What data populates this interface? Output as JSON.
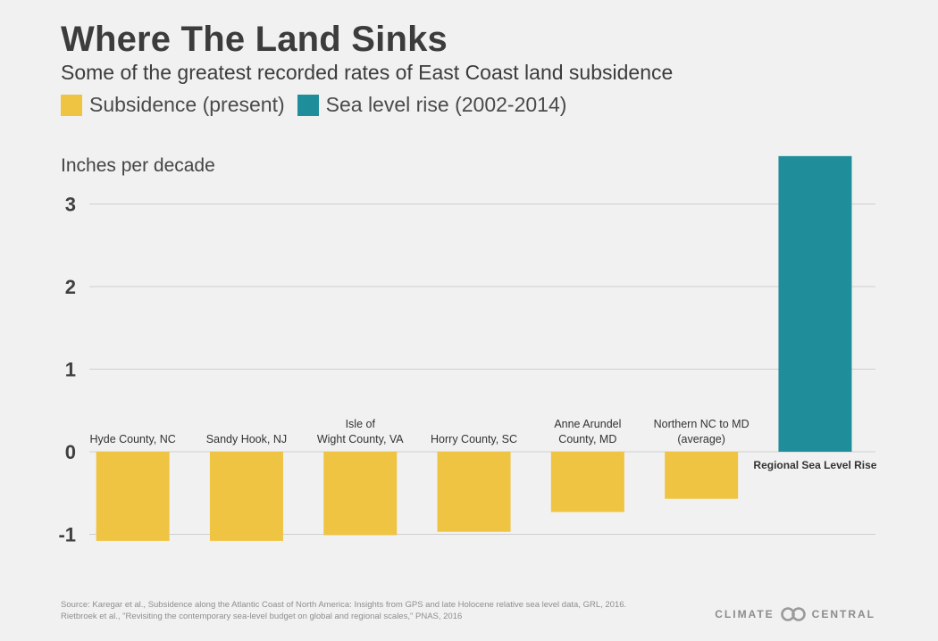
{
  "header": {
    "title": "Where The Land Sinks",
    "subtitle": "Some of the greatest recorded rates of East Coast land subsidence"
  },
  "legend": {
    "items": [
      {
        "label": "Subsidence (present)",
        "color": "#efc443"
      },
      {
        "label": "Sea level rise (2002-2014)",
        "color": "#208e9a"
      }
    ]
  },
  "chart_data": {
    "type": "bar",
    "ylabel": "Inches per decade",
    "yticks": [
      3,
      2,
      1,
      0,
      -1
    ],
    "ylim": [
      -1.1,
      3.55
    ],
    "grid": true,
    "categories": [
      "Hyde County, NC",
      "Sandy Hook, NJ",
      "Isle of\nWight County, VA",
      "Horry County, SC",
      "Anne Arundel\nCounty, MD",
      "Northern NC to MD\n(average)",
      "Regional Sea Level Rise"
    ],
    "values": [
      -1.08,
      -1.08,
      -1.01,
      -0.97,
      -0.73,
      -0.57,
      3.58
    ],
    "colors": [
      "#efc443",
      "#efc443",
      "#efc443",
      "#efc443",
      "#efc443",
      "#efc443",
      "#208e9a"
    ]
  },
  "footer": {
    "source_line1": "Source: Karegar et al., Subsidence along the Atlantic Coast of North America: Insights from GPS and late Holocene relative sea level data, GRL, 2016.",
    "source_line2": "Rietbroek et al., \"Revisiting the contemporary sea-level budget on global and regional scales,\" PNAS, 2016",
    "logo_left": "CLIMATE",
    "logo_right": "CENTRAL"
  }
}
